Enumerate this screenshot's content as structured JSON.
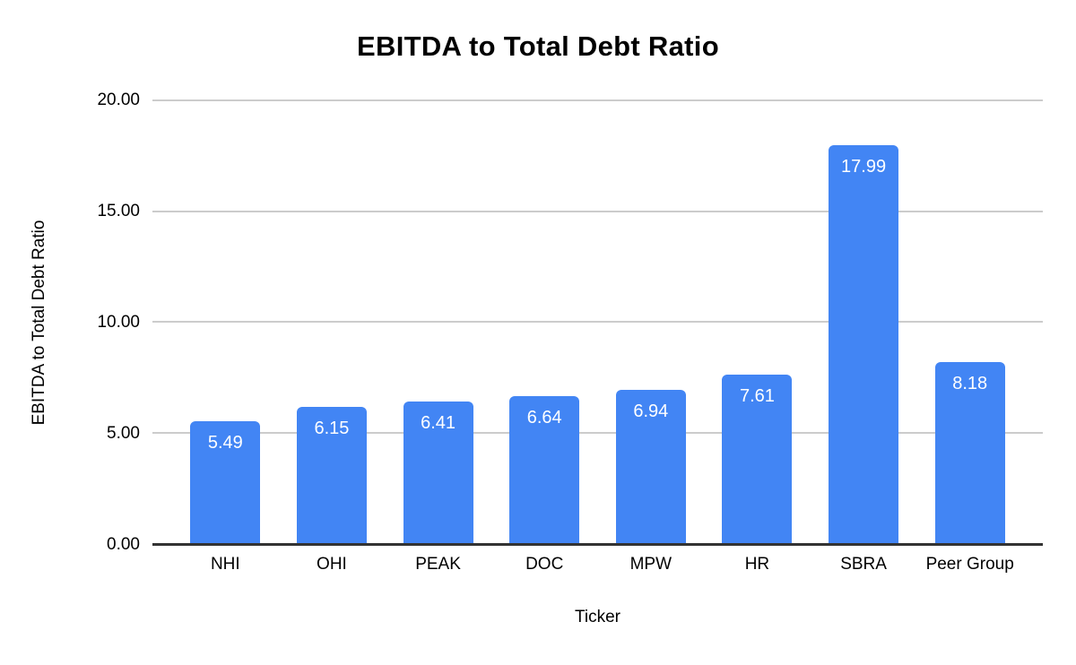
{
  "chart_data": {
    "type": "bar",
    "title": "EBITDA to Total Debt Ratio",
    "xlabel": "Ticker",
    "ylabel": "EBITDA to Total Debt Ratio",
    "categories": [
      "NHI",
      "OHI",
      "PEAK",
      "DOC",
      "MPW",
      "HR",
      "SBRA",
      "Peer Group"
    ],
    "values": [
      5.49,
      6.15,
      6.41,
      6.64,
      6.94,
      7.61,
      17.99,
      8.18
    ],
    "value_labels": [
      "5.49",
      "6.15",
      "6.41",
      "6.64",
      "6.94",
      "7.61",
      "17.99",
      "8.18"
    ],
    "ylim": [
      0,
      20
    ],
    "ytick_labels": [
      "20.00",
      "15.00",
      "10.00",
      "5.00",
      "0.00"
    ],
    "grid": true,
    "legend_position": "none",
    "bar_color": "#4285f4",
    "gridline_color": "#cccccc",
    "baseline_color": "#333333",
    "value_label_color": "#ffffff"
  }
}
